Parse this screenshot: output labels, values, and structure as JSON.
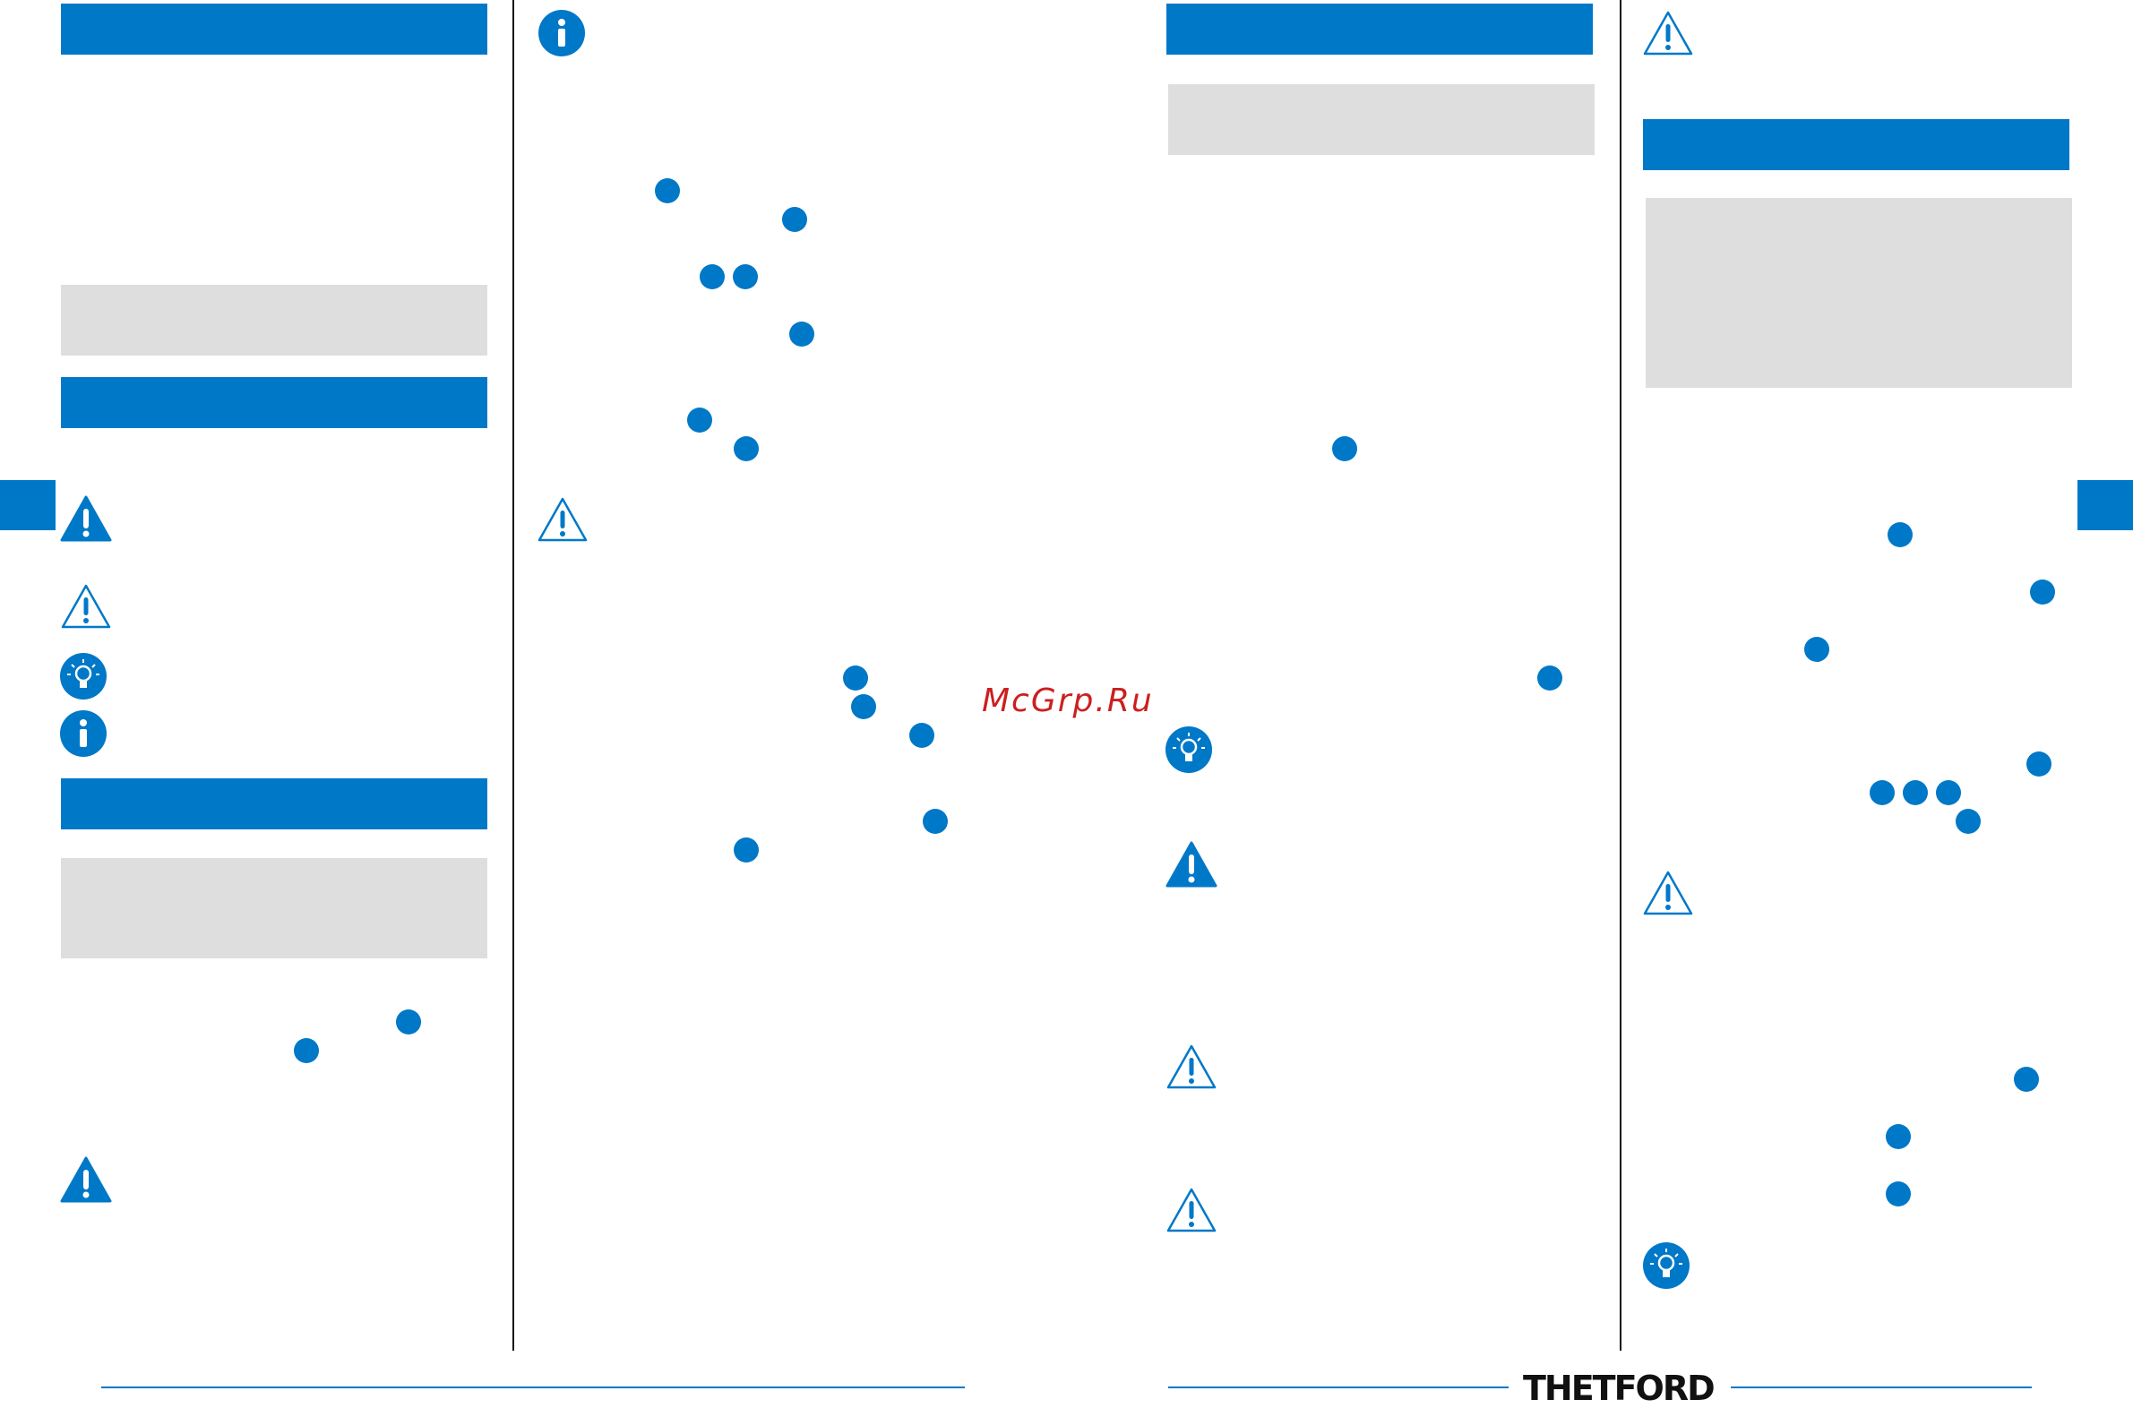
{
  "watermark": {
    "text": "McGrp.Ru"
  },
  "footer": {
    "logo_text": "THETFORD"
  },
  "icons": {
    "warning_filled": "warning-filled-icon",
    "warning_outline": "warning-outline-icon",
    "lightbulb": "lightbulb-icon",
    "info": "info-icon"
  },
  "colors": {
    "accent": "#0078c8",
    "panel": "#dedede",
    "watermark": "#cc1f1f"
  }
}
